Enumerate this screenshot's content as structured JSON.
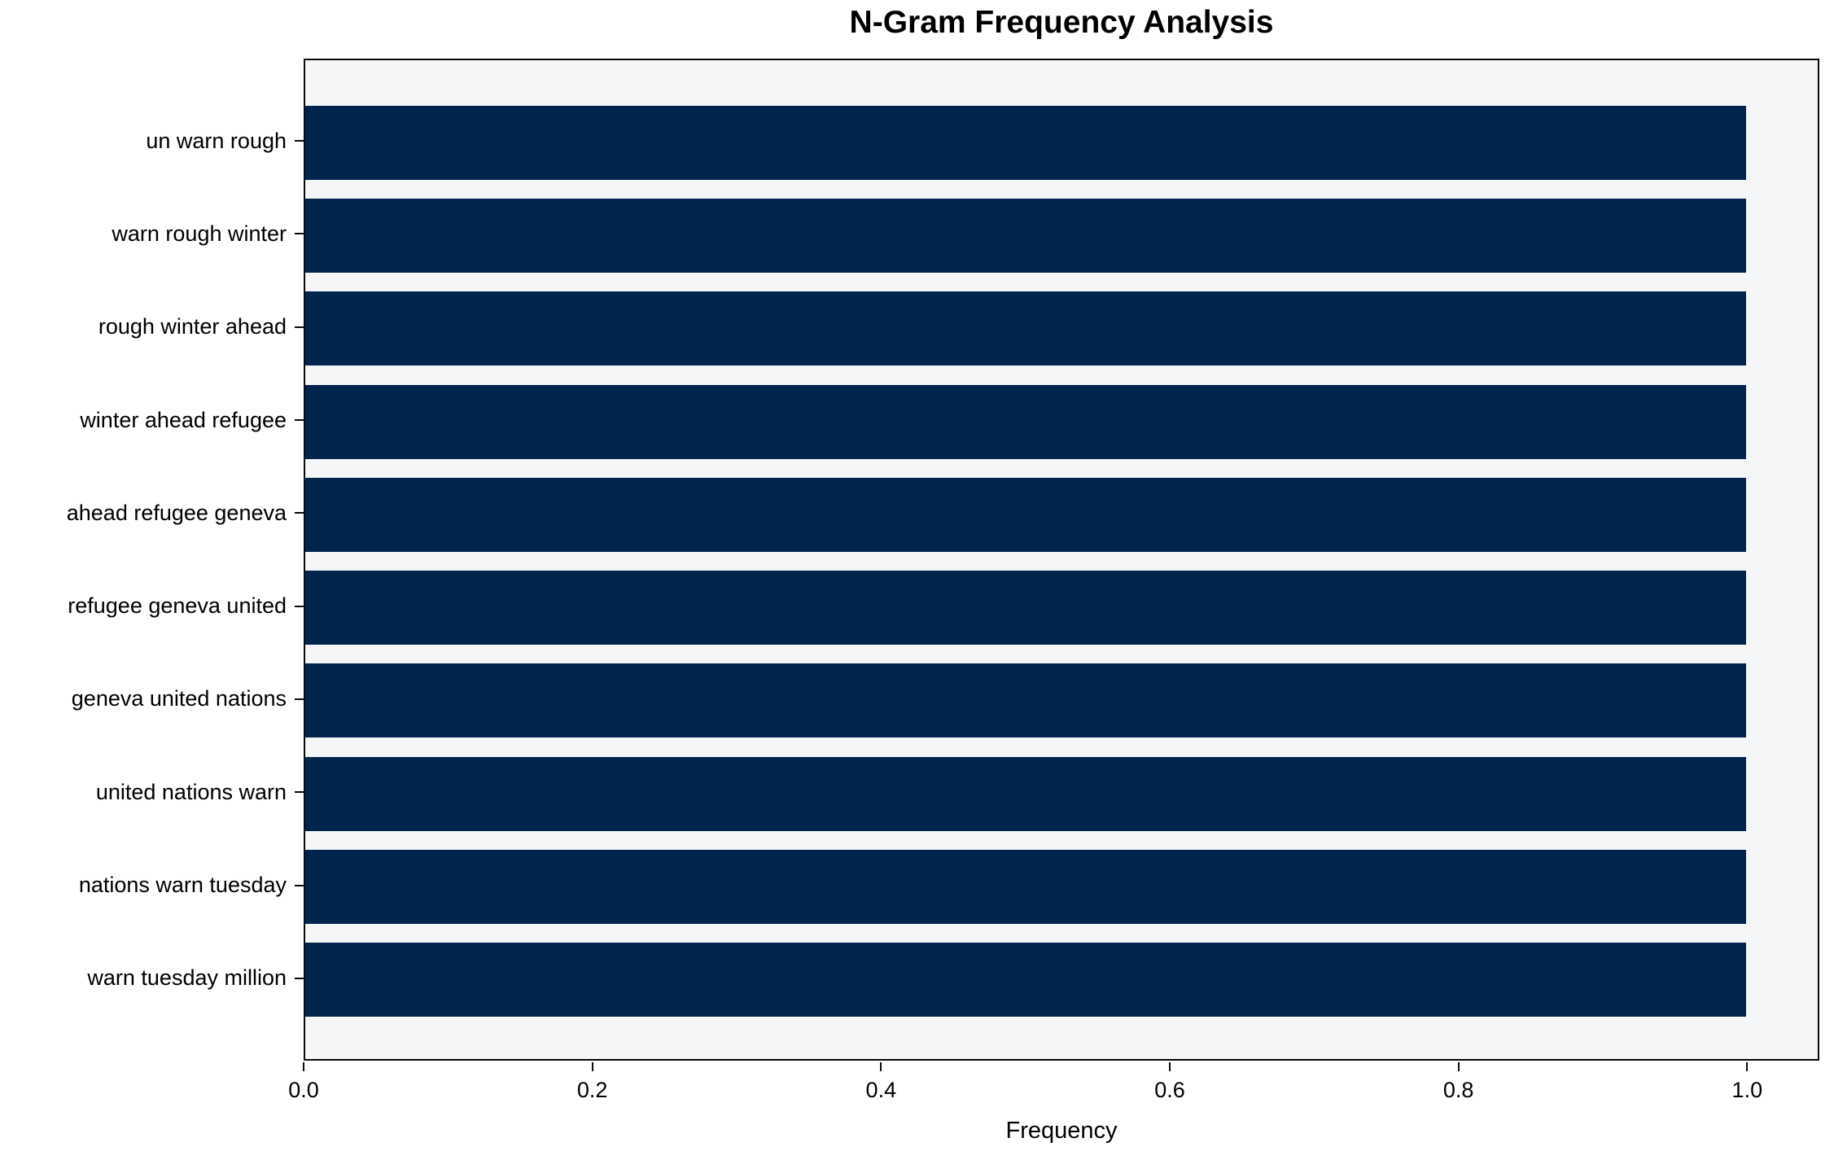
{
  "chart_data": {
    "type": "bar",
    "orientation": "horizontal",
    "title": "N-Gram Frequency Analysis",
    "xlabel": "Frequency",
    "ylabel": "",
    "categories": [
      "un warn rough",
      "warn rough winter",
      "rough winter ahead",
      "winter ahead refugee",
      "ahead refugee geneva",
      "refugee geneva united",
      "geneva united nations",
      "united nations warn",
      "nations warn tuesday",
      "warn tuesday million"
    ],
    "values": [
      1.0,
      1.0,
      1.0,
      1.0,
      1.0,
      1.0,
      1.0,
      1.0,
      1.0,
      1.0
    ],
    "xlim": [
      0,
      1.05
    ],
    "xticks": [
      {
        "value": 0.0,
        "label": "0.0"
      },
      {
        "value": 0.2,
        "label": "0.2"
      },
      {
        "value": 0.4,
        "label": "0.4"
      },
      {
        "value": 0.6,
        "label": "0.6"
      },
      {
        "value": 0.8,
        "label": "0.8"
      },
      {
        "value": 1.0,
        "label": "1.0"
      }
    ],
    "grid": false,
    "legend": null,
    "colors": {
      "bar": "#02254d",
      "plot_background": "#f5f6f7",
      "figure_background": "#ffffff",
      "spine": "#0a0a0a",
      "text": "#000000"
    }
  }
}
